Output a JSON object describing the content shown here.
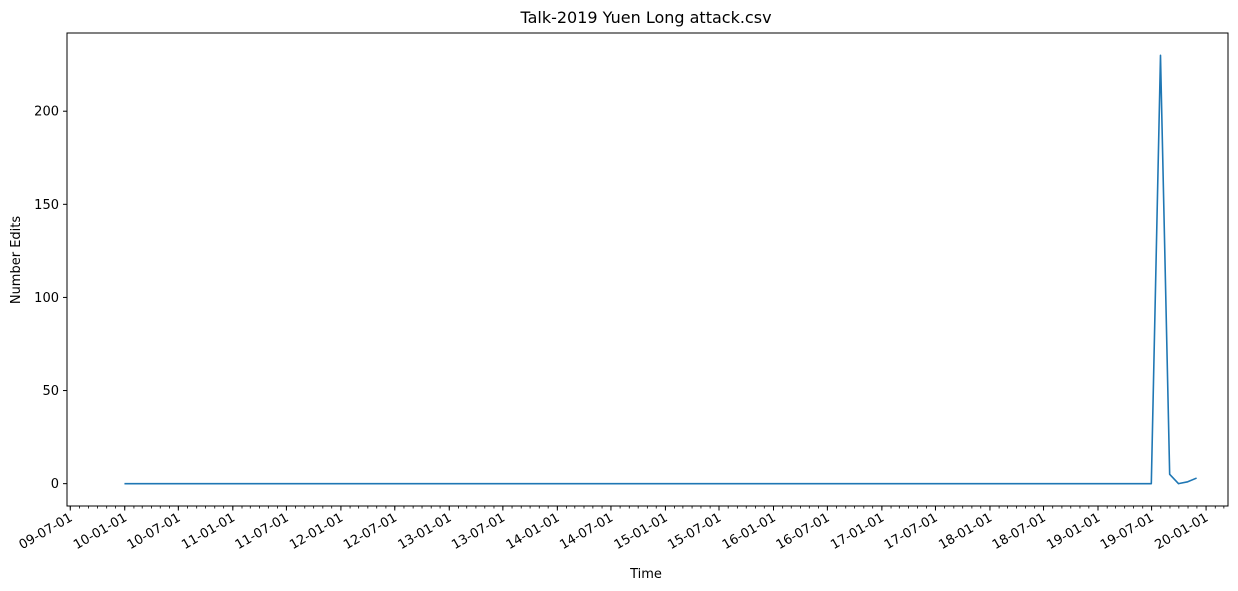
{
  "chart_data": {
    "type": "line",
    "title": "Talk-2019 Yuen Long attack.csv",
    "xlabel": "Time",
    "ylabel": "Number Edits",
    "ylim": [
      -12,
      242
    ],
    "xlim": [
      "2009-06-20",
      "2020-03-15"
    ],
    "x_tick_values": [
      "2009-07-01",
      "2010-01-01",
      "2010-07-01",
      "2011-01-01",
      "2011-07-01",
      "2012-01-01",
      "2012-07-01",
      "2013-01-01",
      "2013-07-01",
      "2014-01-01",
      "2014-07-01",
      "2015-01-01",
      "2015-07-01",
      "2016-01-01",
      "2016-07-01",
      "2017-01-01",
      "2017-07-01",
      "2018-01-01",
      "2018-07-01",
      "2019-01-01",
      "2019-07-01",
      "2020-01-01"
    ],
    "x_tick_labels": [
      "09-07-01",
      "10-01-01",
      "10-07-01",
      "11-01-01",
      "11-07-01",
      "12-01-01",
      "12-07-01",
      "13-01-01",
      "13-07-01",
      "14-01-01",
      "14-07-01",
      "15-01-01",
      "15-07-01",
      "16-01-01",
      "16-07-01",
      "17-01-01",
      "17-07-01",
      "18-01-01",
      "18-07-01",
      "19-01-01",
      "19-07-01",
      "20-01-01"
    ],
    "y_ticks": [
      0,
      50,
      100,
      150,
      200
    ],
    "y_tick_labels": [
      "0",
      "50",
      "100",
      "150",
      "200"
    ],
    "grid": false,
    "series": [
      {
        "color": "#1f77b4",
        "points": [
          [
            "2009-12-31",
            0
          ],
          [
            "2019-06-30",
            0
          ],
          [
            "2019-07-31",
            230
          ],
          [
            "2019-08-31",
            5
          ],
          [
            "2019-09-30",
            0
          ],
          [
            "2019-10-31",
            1
          ],
          [
            "2019-11-30",
            3
          ]
        ]
      }
    ]
  }
}
